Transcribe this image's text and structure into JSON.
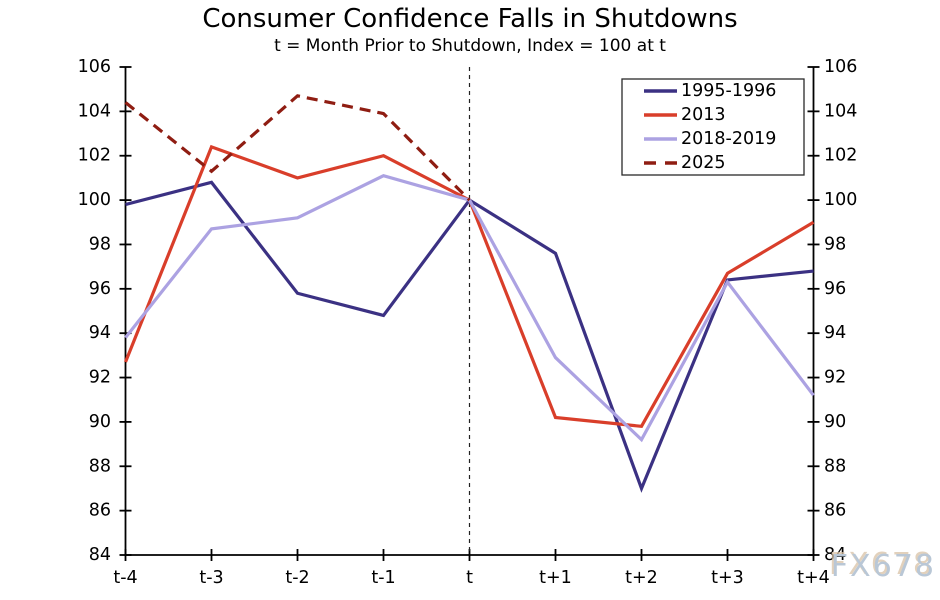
{
  "chart_data": {
    "type": "line",
    "title": "Consumer Confidence Falls in Shutdowns",
    "subtitle": "t = Month Prior to Shutdown, Index = 100 at t",
    "categories": [
      "t-4",
      "t-3",
      "t-2",
      "t-1",
      "t",
      "t+1",
      "t+2",
      "t+3",
      "t+4"
    ],
    "ylim": [
      84,
      106
    ],
    "ytick_step": 2,
    "grid": false,
    "legend_position": "top-right",
    "vline_at_category": "t",
    "axis_color": "#000000",
    "series": [
      {
        "name": "1995-1996",
        "color": "#3B3183",
        "style": "solid",
        "values": [
          99.8,
          100.8,
          95.8,
          94.8,
          100.0,
          97.6,
          87.0,
          96.4,
          96.8
        ]
      },
      {
        "name": "2013",
        "color": "#D93E2A",
        "style": "solid",
        "values": [
          92.7,
          102.4,
          101.0,
          102.0,
          100.0,
          90.2,
          89.8,
          96.7,
          99.0
        ]
      },
      {
        "name": "2018-2019",
        "color": "#ACA2E2",
        "style": "solid",
        "values": [
          93.8,
          98.7,
          99.2,
          101.1,
          100.0,
          92.9,
          89.2,
          96.3,
          91.2
        ]
      },
      {
        "name": "2025",
        "color": "#8F1D12",
        "style": "dashed",
        "values": [
          104.4,
          101.3,
          104.7,
          103.9,
          100.0,
          null,
          null,
          null,
          null
        ]
      }
    ],
    "watermark": "FX678"
  }
}
